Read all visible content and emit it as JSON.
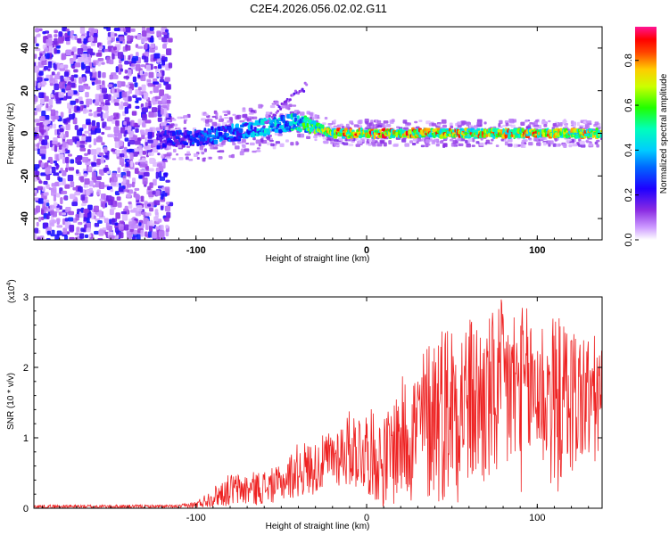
{
  "title": "C2E4.2026.056.02.02.G11",
  "colors": {
    "background": "#ffffff",
    "axis": "#000000",
    "snr_line": "#ee2222",
    "colormap": [
      "#ffffff",
      "#cc99ff",
      "#8a2be2",
      "#1e00ff",
      "#0000ff",
      "#00bfff",
      "#00ffcc",
      "#00ff00",
      "#ffff00",
      "#ff8800",
      "#ff0000",
      "#ff1493"
    ]
  },
  "chart_data": [
    {
      "type": "heatmap",
      "name": "spectrogram",
      "xlabel": "Height of straight line (km)",
      "ylabel": "Frequency (Hz)",
      "xlim": [
        -195,
        138
      ],
      "ylim": [
        -50,
        50
      ],
      "x_ticks": [
        -100,
        0,
        100
      ],
      "x_tick_labels": [
        "-100",
        "0",
        "100"
      ],
      "y_ticks": [
        -40,
        -20,
        0,
        20,
        40
      ],
      "y_tick_labels": [
        "-40",
        "-20",
        "0",
        "20",
        "40"
      ],
      "ridge": {
        "x": [
          -120,
          -100,
          -80,
          -60,
          -45,
          -40,
          -30,
          -20,
          0,
          20,
          40,
          60,
          80,
          100,
          120,
          138
        ],
        "frequency": [
          -3,
          -2,
          0,
          3,
          5,
          5,
          3,
          0,
          0,
          0,
          0,
          0,
          0,
          0,
          0,
          0
        ],
        "amplitude": [
          0.25,
          0.32,
          0.4,
          0.45,
          0.5,
          0.55,
          0.7,
          0.85,
          0.9,
          0.88,
          0.85,
          0.85,
          0.85,
          0.85,
          0.82,
          0.8
        ]
      },
      "colorbar": {
        "label": "Normalized spectral amplitude",
        "range": [
          0,
          0.95
        ],
        "ticks": [
          0,
          0.2,
          0.4,
          0.6,
          0.8
        ],
        "tick_labels": [
          "0.0",
          "0.2",
          "0.4",
          "0.6",
          "0.8"
        ]
      }
    },
    {
      "type": "line",
      "name": "snr",
      "xlabel": "Height of straight line (km)",
      "ylabel": "SNR (10 * v/v)",
      "y_scale_label": "(x10",
      "y_scale_exponent": "4",
      "y_scale_close": ")",
      "xlim": [
        -195,
        138
      ],
      "ylim": [
        0,
        3
      ],
      "x_ticks": [
        -100,
        0,
        100
      ],
      "x_tick_labels": [
        "-100",
        "0",
        "100"
      ],
      "y_ticks": [
        0,
        1,
        2,
        3
      ],
      "y_tick_labels": [
        "0",
        "1",
        "2",
        "3"
      ],
      "envelope": {
        "x": [
          -195,
          -110,
          -100,
          -90,
          -80,
          -70,
          -60,
          -50,
          -40,
          -30,
          -20,
          -10,
          0,
          10,
          20,
          30,
          40,
          50,
          60,
          70,
          80,
          90,
          100,
          110,
          120,
          138
        ],
        "upper": [
          0.05,
          0.05,
          0.1,
          0.3,
          0.5,
          0.5,
          0.55,
          0.6,
          0.95,
          0.95,
          1.15,
          1.4,
          1.45,
          1.3,
          1.85,
          2.1,
          2.65,
          2.75,
          2.75,
          2.7,
          3.0,
          2.9,
          2.8,
          2.75,
          2.65,
          2.4
        ],
        "lower": [
          0.0,
          0.0,
          0.0,
          0.02,
          0.03,
          0.03,
          0.05,
          0.1,
          0.15,
          0.2,
          0.3,
          0.3,
          0.2,
          0.0,
          0.0,
          0.0,
          0.0,
          0.05,
          0.1,
          0.1,
          0.15,
          0.2,
          0.4,
          0.1,
          0.4,
          0.5
        ]
      }
    }
  ]
}
